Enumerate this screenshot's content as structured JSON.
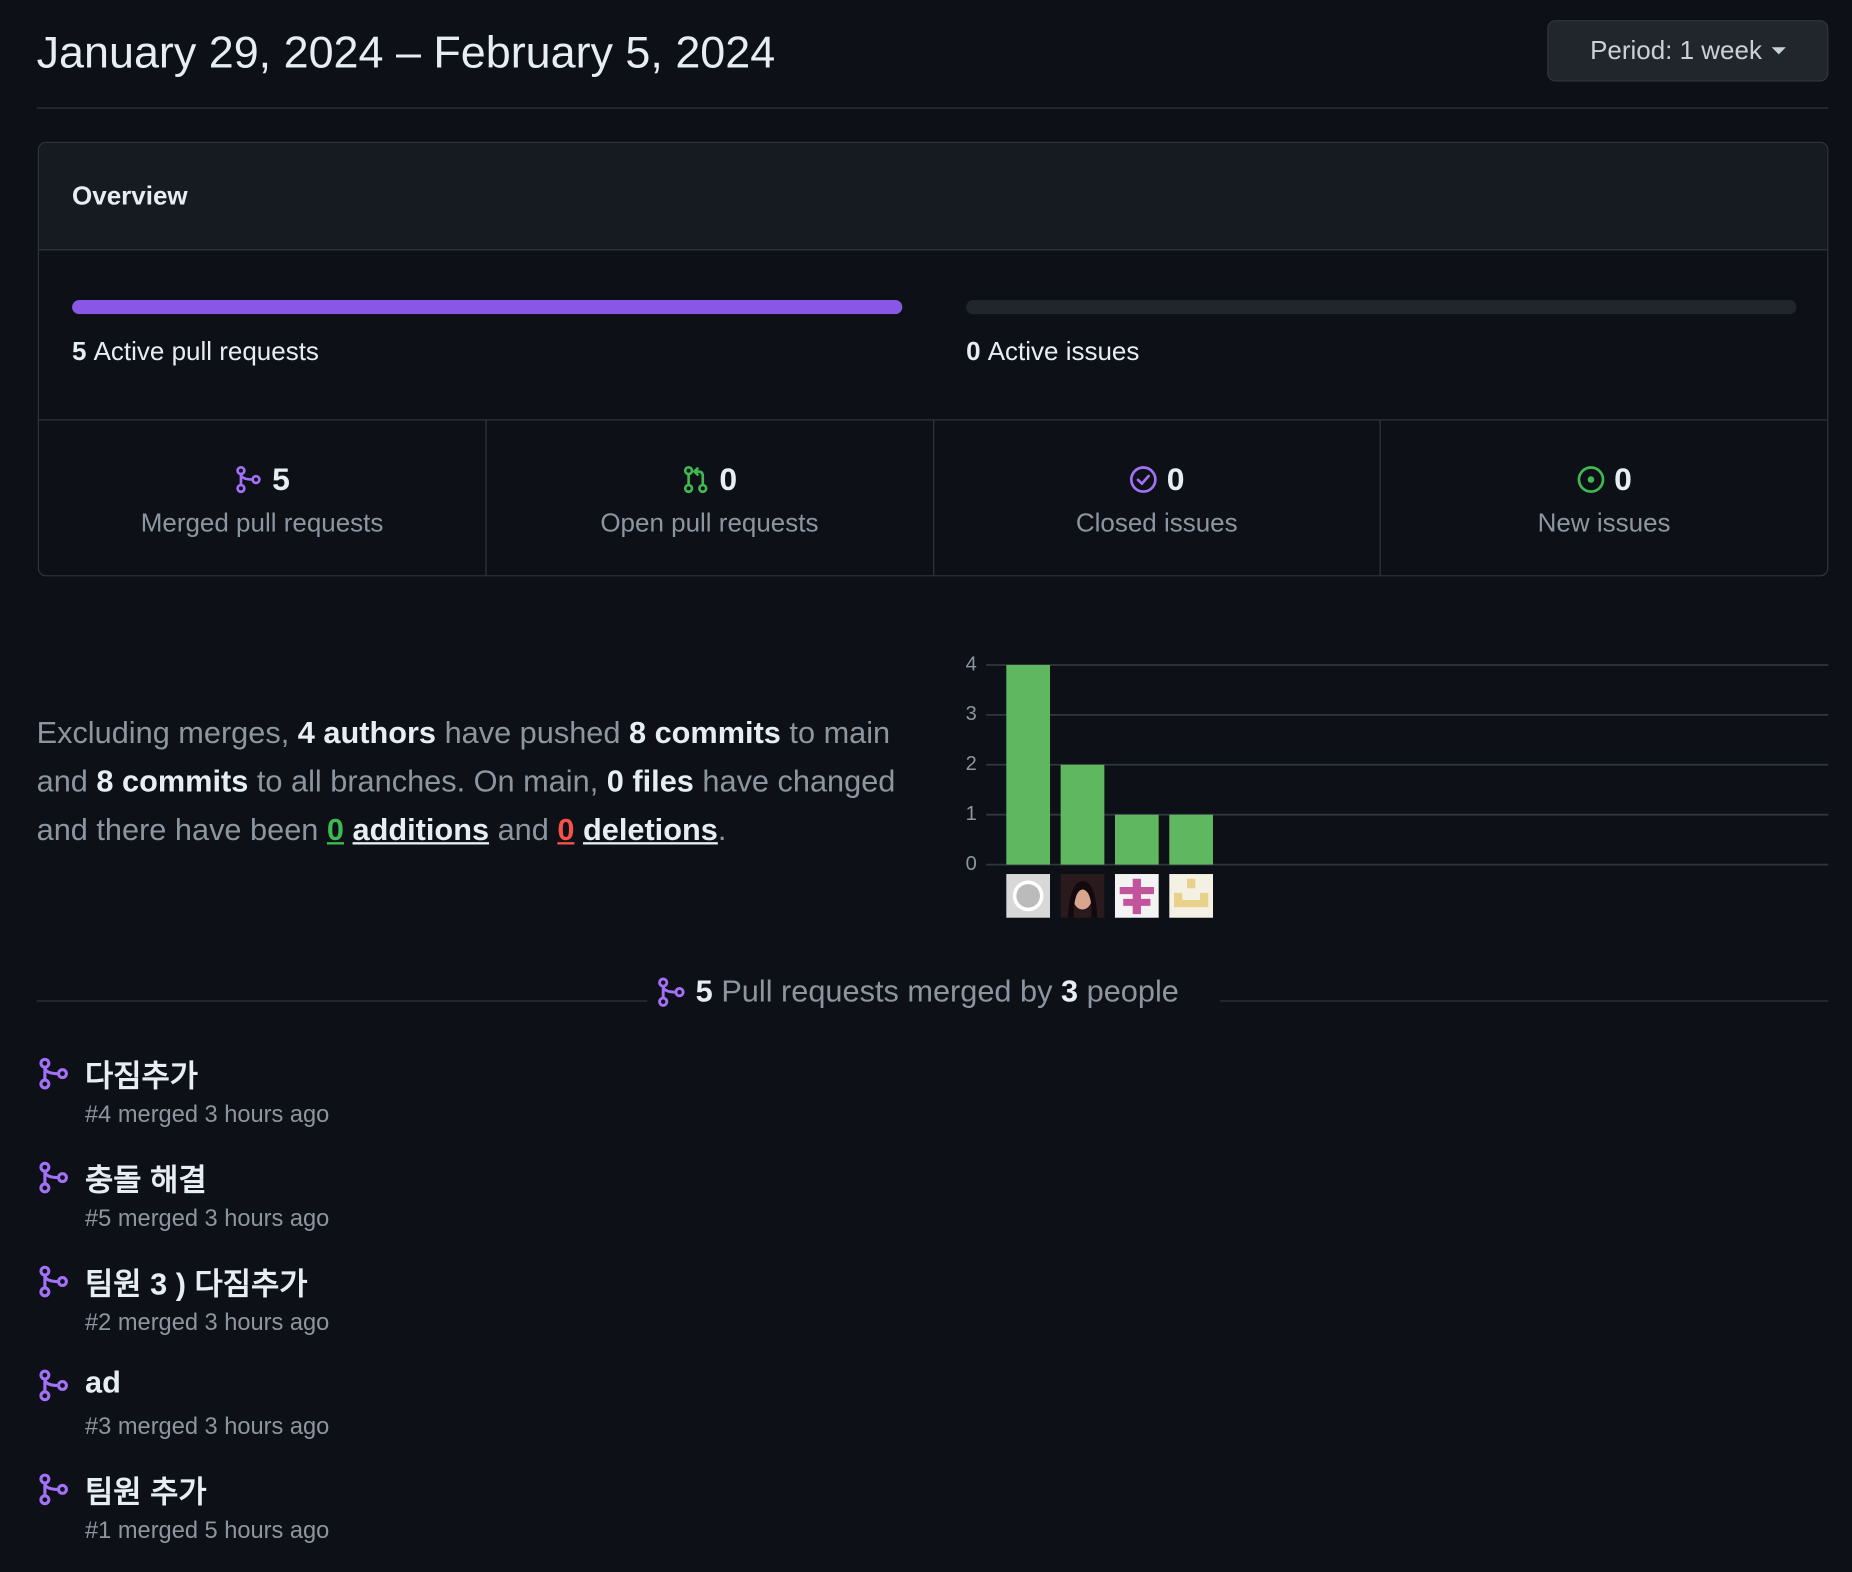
{
  "header": {
    "title": "January 29, 2024 – February 5, 2024",
    "period_button": "Period: 1 week"
  },
  "overview": {
    "title": "Overview",
    "active_pull_requests": {
      "count": 5,
      "label": "Active pull requests",
      "color": "#8957e5"
    },
    "active_issues": {
      "count": 0,
      "label": "Active issues",
      "color": "#3fb950"
    },
    "stats": [
      {
        "count": 5,
        "label": "Merged pull requests",
        "icon": "merged",
        "color": "#a371f7"
      },
      {
        "count": 0,
        "label": "Open pull requests",
        "icon": "pr-open",
        "color": "#3fb950"
      },
      {
        "count": 0,
        "label": "Closed issues",
        "icon": "issue-closed",
        "color": "#a371f7"
      },
      {
        "count": 0,
        "label": "New issues",
        "icon": "issue-open",
        "color": "#3fb950"
      }
    ]
  },
  "summary": [
    {
      "text": "Excluding merges,",
      "style": "plain"
    },
    {
      "text": "4 authors",
      "style": "bold"
    },
    {
      "text": "have pushed",
      "style": "plain"
    },
    {
      "text": "8 commits",
      "style": "bold"
    },
    {
      "text": "to main and",
      "style": "plain"
    },
    {
      "text": "8 commits",
      "style": "bold"
    },
    {
      "text": "to all branches. On main,",
      "style": "plain"
    },
    {
      "text": "0 files",
      "style": "bold"
    },
    {
      "text": "have changed and there have been",
      "style": "plain"
    },
    {
      "text": "0",
      "style": "added"
    },
    {
      "text": "additions",
      "style": "link"
    },
    {
      "text": "and",
      "style": "plain"
    },
    {
      "text": "0",
      "style": "removed"
    },
    {
      "text": "deletions",
      "style": "link"
    },
    {
      "text": ".",
      "style": "plain"
    }
  ],
  "commits_chart": {
    "type": "bar",
    "values": [
      4,
      2,
      1,
      1
    ],
    "color": "#5fb85f",
    "ylim": [
      0,
      4
    ],
    "yticks": [
      0,
      1,
      2,
      3,
      4
    ],
    "grid": true
  },
  "merged_heading": [
    {
      "text": "5",
      "style": "bold"
    },
    {
      "text": "Pull requests merged by",
      "style": "plain"
    },
    {
      "text": "3",
      "style": "bold"
    },
    {
      "text": "people",
      "style": "plain"
    }
  ],
  "pull_requests": [
    {
      "title": "다짐추가",
      "meta": "#4 merged 3 hours ago"
    },
    {
      "title": "충돌 해결",
      "meta": "#5 merged 3 hours ago"
    },
    {
      "title": "팀원 3 ) 다짐추가",
      "meta": "#2 merged 3 hours ago"
    },
    {
      "title": "ad",
      "meta": "#3 merged 3 hours ago"
    },
    {
      "title": "팀원 추가",
      "meta": "#1 merged 5 hours ago"
    }
  ]
}
